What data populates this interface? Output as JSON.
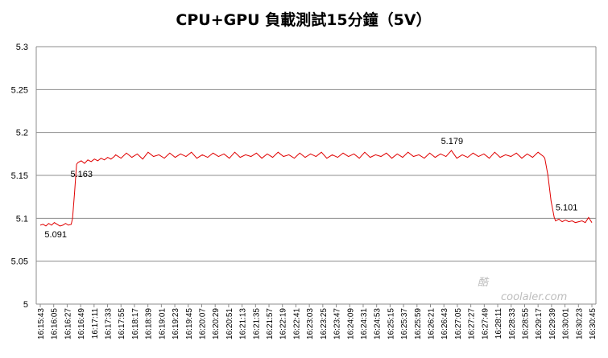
{
  "chart_data": {
    "type": "line",
    "title": "CPU+GPU 負載測試15分鐘（5V）",
    "xlabel": "",
    "ylabel": "",
    "ylim": [
      5,
      5.3
    ],
    "yticks": [
      "5",
      "5.05",
      "5.1",
      "5.15",
      "5.2",
      "5.25",
      "5.3"
    ],
    "grid": true,
    "legend": "none",
    "series_color": "#e00000",
    "x_tick_labels": [
      "16:15:43",
      "16:16:05",
      "16:16:27",
      "16:16:49",
      "16:17:11",
      "16:17:33",
      "16:17:55",
      "16:18:17",
      "16:18:39",
      "16:19:01",
      "16:19:23",
      "16:19:45",
      "16:20:07",
      "16:20:29",
      "16:20:51",
      "16:21:13",
      "16:21:35",
      "16:21:57",
      "16:22:19",
      "16:22:41",
      "16:23:03",
      "16:23:25",
      "16:23:47",
      "16:24:09",
      "16:24:31",
      "16:24:53",
      "16:25:15",
      "16:25:37",
      "16:25:59",
      "16:26:21",
      "16:26:43",
      "16:27:05",
      "16:27:27",
      "16:27:49",
      "16:28:11",
      "16:28:33",
      "16:28:55",
      "16:29:17",
      "16:29:39",
      "16:30:01",
      "16:30:23",
      "16:30:45"
    ],
    "series": [
      {
        "name": "",
        "segments": [
          {
            "x_start": 0,
            "x_end": 2.3,
            "values": [
              5.092,
              5.093,
              5.091,
              5.094,
              5.092,
              5.095,
              5.093,
              5.091,
              5.092,
              5.094,
              5.092,
              5.093
            ]
          },
          {
            "x_start": 2.4,
            "x_end": 2.7,
            "values": [
              5.1,
              5.13,
              5.163
            ]
          },
          {
            "x_start": 2.8,
            "x_end": 5.5,
            "values": [
              5.165,
              5.167,
              5.164,
              5.168,
              5.166,
              5.169,
              5.167,
              5.17,
              5.168,
              5.171,
              5.169,
              5.172
            ]
          },
          {
            "x_start": 5.6,
            "x_end": 37.4,
            "values": [
              5.174,
              5.17,
              5.176,
              5.171,
              5.175,
              5.169,
              5.177,
              5.172,
              5.174,
              5.17,
              5.176,
              5.171,
              5.175,
              5.172,
              5.177,
              5.17,
              5.174,
              5.171,
              5.176,
              5.172,
              5.175,
              5.17,
              5.177,
              5.171,
              5.174,
              5.172,
              5.176,
              5.17,
              5.175,
              5.171,
              5.177,
              5.172,
              5.174,
              5.17,
              5.176,
              5.171,
              5.175,
              5.172,
              5.177,
              5.17,
              5.174,
              5.171,
              5.176,
              5.172,
              5.175,
              5.17,
              5.177,
              5.171,
              5.174,
              5.172,
              5.176,
              5.17,
              5.175,
              5.171,
              5.177,
              5.172,
              5.174,
              5.17,
              5.176,
              5.171,
              5.175,
              5.172,
              5.179,
              5.17,
              5.174,
              5.171,
              5.176,
              5.172,
              5.175,
              5.17,
              5.177,
              5.171,
              5.174,
              5.172,
              5.176,
              5.17,
              5.175,
              5.171,
              5.177,
              5.172
            ]
          },
          {
            "x_start": 37.5,
            "x_end": 38.2,
            "values": [
              5.17,
              5.15,
              5.12,
              5.101
            ]
          },
          {
            "x_start": 38.3,
            "x_end": 41,
            "values": [
              5.097,
              5.099,
              5.096,
              5.098,
              5.096,
              5.097,
              5.095,
              5.096,
              5.097,
              5.095,
              5.101,
              5.095
            ]
          }
        ]
      }
    ],
    "annotations": [
      {
        "text": "5.091",
        "x": 2.0,
        "y": 5.091
      },
      {
        "text": "5.163",
        "x": 2.6,
        "y": 5.163
      },
      {
        "text": "5.179",
        "x": 30.5,
        "y": 5.179
      },
      {
        "text": "5.101",
        "x": 38.3,
        "y": 5.101
      }
    ]
  },
  "watermark": {
    "text": "coolaler.com",
    "logo_text": "酷"
  }
}
